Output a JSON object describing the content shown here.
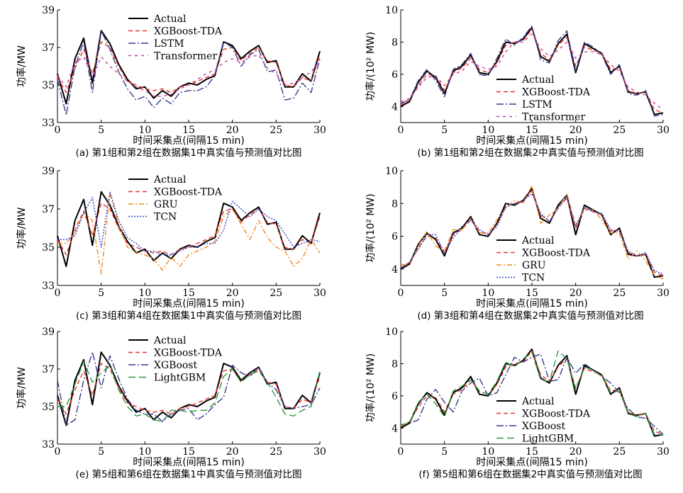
{
  "chart_data": [
    {
      "type": "line",
      "caption": "(a) 第1组和第2组在数据集1中真实值与预测值对比图",
      "xlabel": "时间采集点(间隔15 min)",
      "ylabel": "功率/MW",
      "xlim": [
        0,
        30
      ],
      "ylim": [
        33,
        39
      ],
      "xticks": [
        "0",
        "5",
        "10",
        "15",
        "20",
        "25",
        "30"
      ],
      "yticks": [
        "33",
        "35",
        "37",
        "39"
      ],
      "legend": "top-left",
      "series": [
        {
          "name": "Actual",
          "color": "#000000",
          "values": [
            35.6,
            34.0,
            36.4,
            37.5,
            35.1,
            37.9,
            37.2,
            36.1,
            35.3,
            34.8,
            34.9,
            34.3,
            34.7,
            34.4,
            34.9,
            35.1,
            35.0,
            35.3,
            35.5,
            37.3,
            37.1,
            36.4,
            36.8,
            37.1,
            36.2,
            36.3,
            34.9,
            34.9,
            35.6,
            35.2,
            36.8
          ]
        },
        {
          "name": "XGBoost-TDA",
          "color": "#e8342c",
          "values": [
            35.4,
            34.6,
            35.9,
            36.9,
            35.6,
            37.3,
            37.0,
            36.0,
            35.2,
            35.0,
            34.8,
            34.7,
            34.8,
            34.6,
            34.9,
            35.0,
            35.2,
            35.4,
            35.6,
            36.9,
            37.0,
            36.3,
            36.7,
            37.0,
            36.3,
            36.2,
            35.0,
            34.9,
            35.4,
            35.2,
            36.6
          ]
        },
        {
          "name": "LSTM",
          "color": "#3a3a8c",
          "values": [
            35.3,
            33.4,
            36.0,
            37.3,
            34.6,
            37.9,
            36.9,
            35.7,
            34.8,
            34.2,
            34.4,
            33.8,
            34.3,
            34.0,
            34.6,
            34.7,
            34.7,
            34.9,
            35.5,
            37.3,
            37.0,
            36.0,
            36.6,
            36.9,
            35.7,
            35.8,
            34.2,
            34.3,
            35.1,
            34.6,
            36.4
          ]
        },
        {
          "name": "Transformer",
          "color": "#c040a0",
          "values": [
            35.5,
            34.9,
            36.2,
            36.5,
            35.4,
            36.5,
            36.0,
            35.6,
            35.2,
            34.9,
            34.7,
            34.4,
            34.4,
            34.5,
            34.8,
            35.0,
            35.3,
            35.6,
            35.8,
            36.2,
            36.4,
            36.2,
            36.5,
            36.6,
            35.9,
            35.6,
            35.0,
            35.1,
            35.4,
            35.7,
            36.3
          ]
        }
      ]
    },
    {
      "type": "line",
      "caption": "(b) 第1组和第2组在数据集2中真实值与预测值对比图",
      "xlabel": "时间采集点(间隔15 min)",
      "ylabel": "功率/(10² MW)",
      "xlim": [
        0,
        30
      ],
      "ylim": [
        3,
        10
      ],
      "xticks": [
        "0",
        "5",
        "10",
        "15",
        "20",
        "25",
        "30"
      ],
      "yticks": [
        "4",
        "6",
        "8",
        "10"
      ],
      "legend": "bottom-center",
      "series": [
        {
          "name": "Actual",
          "color": "#000000",
          "values": [
            4.0,
            4.3,
            5.5,
            6.2,
            5.8,
            4.8,
            6.2,
            6.5,
            7.2,
            6.1,
            6.0,
            6.8,
            8.0,
            7.9,
            8.2,
            8.9,
            7.1,
            6.8,
            7.9,
            8.5,
            6.1,
            7.9,
            7.6,
            7.3,
            6.1,
            6.5,
            4.9,
            4.8,
            4.9,
            3.5,
            3.6
          ]
        },
        {
          "name": "XGBoost-TDA",
          "color": "#e8342c",
          "values": [
            4.1,
            4.4,
            5.3,
            6.0,
            5.9,
            5.0,
            6.1,
            6.4,
            7.0,
            6.3,
            6.1,
            6.7,
            7.8,
            8.0,
            8.1,
            8.8,
            7.3,
            6.9,
            7.8,
            8.3,
            6.5,
            7.7,
            7.5,
            7.3,
            6.3,
            6.4,
            5.0,
            4.8,
            4.9,
            3.8,
            3.6
          ]
        },
        {
          "name": "LSTM",
          "color": "#3a3a8c",
          "values": [
            4.2,
            4.4,
            5.6,
            6.3,
            5.6,
            4.6,
            6.3,
            6.6,
            7.3,
            6.0,
            5.9,
            7.0,
            8.2,
            7.8,
            8.3,
            9.0,
            6.9,
            6.7,
            8.1,
            8.7,
            6.2,
            8.0,
            7.7,
            7.2,
            6.0,
            6.6,
            4.8,
            4.7,
            5.0,
            3.4,
            3.5
          ]
        },
        {
          "name": "Transformer",
          "color": "#c040a0",
          "values": [
            4.3,
            4.5,
            5.2,
            5.8,
            5.9,
            5.3,
            6.0,
            6.2,
            6.8,
            6.5,
            6.3,
            6.5,
            7.4,
            8.0,
            8.0,
            8.5,
            7.6,
            7.1,
            7.5,
            8.0,
            7.0,
            7.4,
            7.4,
            7.2,
            6.6,
            6.2,
            5.2,
            4.9,
            4.7,
            4.2,
            3.8
          ]
        }
      ]
    },
    {
      "type": "line",
      "caption": "(c) 第3组和第4组在数据集1中真实值与预测值对比图",
      "xlabel": "时间采集点(间隔15 min)",
      "ylabel": "功率/MW",
      "xlim": [
        0,
        30
      ],
      "ylim": [
        33,
        39
      ],
      "xticks": [
        "0",
        "5",
        "10",
        "15",
        "20",
        "25",
        "30"
      ],
      "yticks": [
        "33",
        "35",
        "37",
        "39"
      ],
      "legend": "top-left",
      "series": [
        {
          "name": "Actual",
          "color": "#000000",
          "values": [
            35.6,
            34.0,
            36.4,
            37.5,
            35.1,
            37.9,
            37.2,
            36.1,
            35.3,
            34.7,
            34.9,
            34.3,
            34.7,
            34.4,
            34.9,
            35.1,
            35.0,
            35.3,
            35.5,
            37.3,
            37.1,
            36.4,
            36.8,
            37.1,
            36.2,
            36.3,
            34.9,
            34.9,
            35.6,
            35.2,
            36.8
          ]
        },
        {
          "name": "XGBoost-TDA",
          "color": "#e8342c",
          "values": [
            35.4,
            34.6,
            35.9,
            36.9,
            35.6,
            37.3,
            37.0,
            36.0,
            35.2,
            35.0,
            34.8,
            34.7,
            34.8,
            34.6,
            34.9,
            35.0,
            35.2,
            35.4,
            35.6,
            36.9,
            37.0,
            36.3,
            36.7,
            37.0,
            36.3,
            36.2,
            35.0,
            34.9,
            35.4,
            35.2,
            36.6
          ]
        },
        {
          "name": "GRU",
          "color": "#f08a24",
          "values": [
            35.2,
            35.2,
            35.8,
            36.8,
            36.4,
            33.6,
            37.8,
            36.2,
            35.0,
            34.7,
            34.6,
            34.4,
            33.8,
            34.5,
            34.0,
            34.6,
            34.8,
            35.0,
            35.3,
            36.6,
            37.0,
            36.2,
            35.4,
            36.4,
            35.5,
            35.0,
            34.8,
            34.0,
            34.4,
            35.4,
            34.7
          ]
        },
        {
          "name": "TCN",
          "color": "#2b44c8",
          "values": [
            35.4,
            35.4,
            35.6,
            36.8,
            37.6,
            35.0,
            37.9,
            36.4,
            35.5,
            35.2,
            34.8,
            34.8,
            34.6,
            34.6,
            34.8,
            35.0,
            35.0,
            35.2,
            35.2,
            35.9,
            37.4,
            37.0,
            36.6,
            37.0,
            36.6,
            36.4,
            35.7,
            35.0,
            35.2,
            35.4,
            35.3
          ]
        }
      ]
    },
    {
      "type": "line",
      "caption": "(d) 第3组和第4组在数据集2中真实值与预测值对比图",
      "xlabel": "时间采集点(间隔15 min)",
      "ylabel": "功率/(10² MW)",
      "xlim": [
        0,
        30
      ],
      "ylim": [
        3,
        10
      ],
      "xticks": [
        "0",
        "5",
        "10",
        "15",
        "20",
        "25",
        "30"
      ],
      "yticks": [
        "4",
        "6",
        "8",
        "10"
      ],
      "legend": "bottom-center",
      "series": [
        {
          "name": "Actual",
          "color": "#000000",
          "values": [
            4.0,
            4.3,
            5.5,
            6.2,
            5.8,
            4.8,
            6.2,
            6.5,
            7.2,
            6.1,
            6.0,
            6.8,
            8.0,
            7.9,
            8.2,
            8.9,
            7.1,
            6.8,
            7.9,
            8.5,
            6.1,
            7.9,
            7.6,
            7.3,
            6.1,
            6.5,
            4.9,
            4.8,
            4.9,
            3.5,
            3.6
          ]
        },
        {
          "name": "XGBoost-TDA",
          "color": "#e8342c",
          "values": [
            4.1,
            4.4,
            5.3,
            6.0,
            5.9,
            5.0,
            6.1,
            6.4,
            7.0,
            6.3,
            6.1,
            6.7,
            7.8,
            8.0,
            8.1,
            8.8,
            7.3,
            6.9,
            7.8,
            8.3,
            6.5,
            7.7,
            7.5,
            7.3,
            6.3,
            6.4,
            5.0,
            4.8,
            4.9,
            3.8,
            3.6
          ]
        },
        {
          "name": "GRU",
          "color": "#f08a24",
          "values": [
            4.3,
            4.2,
            5.4,
            6.3,
            5.4,
            5.1,
            6.4,
            6.4,
            7.1,
            6.2,
            6.2,
            7.0,
            7.7,
            8.2,
            8.0,
            9.1,
            6.8,
            7.3,
            7.7,
            8.6,
            6.7,
            7.6,
            7.6,
            7.0,
            6.2,
            6.2,
            4.6,
            5.1,
            4.5,
            3.6,
            3.4
          ]
        },
        {
          "name": "TCN",
          "color": "#2b44c8",
          "values": [
            4.1,
            4.4,
            5.2,
            6.1,
            6.1,
            5.0,
            5.9,
            6.6,
            7.0,
            6.4,
            6.1,
            6.6,
            7.8,
            8.0,
            8.2,
            8.6,
            7.4,
            6.9,
            7.7,
            8.4,
            6.6,
            7.8,
            7.5,
            7.4,
            6.4,
            6.3,
            5.1,
            4.8,
            5.0,
            3.9,
            3.7
          ]
        }
      ]
    },
    {
      "type": "line",
      "caption": "(e) 第5组和第6组在数据集1中真实值与预测值对比图",
      "xlabel": "时间采集点(间隔15 min)",
      "ylabel": "功率/MW",
      "xlim": [
        0,
        30
      ],
      "ylim": [
        33,
        39
      ],
      "xticks": [
        "0",
        "5",
        "10",
        "15",
        "20",
        "25",
        "30"
      ],
      "yticks": [
        "33",
        "35",
        "37",
        "39"
      ],
      "legend": "top-left",
      "series": [
        {
          "name": "Actual",
          "color": "#000000",
          "values": [
            35.6,
            34.0,
            36.4,
            37.5,
            35.1,
            37.9,
            37.2,
            36.1,
            35.3,
            34.7,
            34.9,
            34.3,
            34.7,
            34.4,
            34.9,
            35.1,
            35.0,
            35.3,
            35.5,
            37.3,
            37.1,
            36.4,
            36.8,
            37.1,
            36.2,
            36.3,
            34.9,
            34.9,
            35.6,
            35.2,
            36.8
          ]
        },
        {
          "name": "XGBoost-TDA",
          "color": "#e8342c",
          "values": [
            35.4,
            34.6,
            35.9,
            36.9,
            35.6,
            37.3,
            37.0,
            36.0,
            35.2,
            35.0,
            34.8,
            34.7,
            34.8,
            34.6,
            34.9,
            35.0,
            35.2,
            35.4,
            35.6,
            36.9,
            37.0,
            36.3,
            36.7,
            37.0,
            36.3,
            36.2,
            35.0,
            34.9,
            35.4,
            35.2,
            36.6
          ]
        },
        {
          "name": "XGBoost",
          "color": "#3a3a8c",
          "values": [
            36.4,
            34.0,
            34.3,
            36.4,
            37.9,
            36.0,
            37.7,
            36.5,
            35.4,
            34.8,
            34.6,
            34.6,
            34.2,
            34.6,
            34.8,
            34.9,
            34.3,
            34.6,
            35.1,
            35.5,
            37.2,
            36.8,
            36.6,
            37.1,
            36.3,
            35.9,
            35.0,
            34.9,
            35.0,
            35.1,
            36.0
          ]
        },
        {
          "name": "LightGBM",
          "color": "#2e9a3e",
          "values": [
            35.0,
            35.0,
            36.2,
            37.4,
            36.3,
            36.8,
            37.2,
            35.9,
            35.0,
            34.5,
            34.6,
            34.3,
            34.2,
            34.8,
            34.8,
            34.7,
            34.8,
            34.8,
            35.2,
            36.6,
            37.0,
            36.3,
            36.7,
            36.9,
            36.3,
            35.5,
            34.6,
            34.5,
            34.8,
            35.0,
            36.9
          ]
        }
      ]
    },
    {
      "type": "line",
      "caption": "(f) 第5组和第6组在数据集2中真实值与预测值对比图",
      "xlabel": "时间采集点(间隔15 min)",
      "ylabel": "功率/(10² MW)",
      "xlim": [
        0,
        30
      ],
      "ylim": [
        3,
        10
      ],
      "xticks": [
        "0",
        "5",
        "10",
        "15",
        "20",
        "25",
        "30"
      ],
      "yticks": [
        "4",
        "6",
        "8",
        "10"
      ],
      "legend": "bottom-center",
      "series": [
        {
          "name": "Actual",
          "color": "#000000",
          "values": [
            4.0,
            4.3,
            5.5,
            6.2,
            5.8,
            4.8,
            6.2,
            6.5,
            7.2,
            6.1,
            6.0,
            6.8,
            8.0,
            7.9,
            8.2,
            8.9,
            7.1,
            6.8,
            7.9,
            8.5,
            6.1,
            7.9,
            7.6,
            7.3,
            6.1,
            6.5,
            4.9,
            4.8,
            4.9,
            3.5,
            3.6
          ]
        },
        {
          "name": "XGBoost-TDA",
          "color": "#e8342c",
          "values": [
            4.1,
            4.4,
            5.3,
            6.0,
            5.9,
            5.0,
            6.1,
            6.4,
            7.0,
            6.3,
            6.1,
            6.7,
            7.8,
            8.0,
            8.1,
            8.8,
            7.3,
            6.9,
            7.8,
            8.3,
            6.5,
            7.7,
            7.5,
            7.3,
            6.3,
            6.4,
            5.0,
            4.8,
            4.9,
            3.8,
            3.6
          ]
        },
        {
          "name": "XGBoost",
          "color": "#3a3a8c",
          "values": [
            4.2,
            4.3,
            4.5,
            5.8,
            6.4,
            5.6,
            5.0,
            6.3,
            6.8,
            7.1,
            6.0,
            6.2,
            7.3,
            8.4,
            8.1,
            8.4,
            8.6,
            6.9,
            7.0,
            8.4,
            7.4,
            8.0,
            7.6,
            7.2,
            6.8,
            6.2,
            5.2,
            4.7,
            4.6,
            4.1,
            3.6
          ]
        },
        {
          "name": "LightGBM",
          "color": "#2e9a3e",
          "values": [
            4.2,
            4.3,
            5.6,
            6.1,
            5.5,
            4.7,
            6.3,
            6.6,
            7.0,
            6.3,
            6.1,
            6.9,
            8.1,
            7.8,
            8.3,
            8.7,
            7.0,
            6.9,
            8.8,
            8.3,
            6.4,
            7.8,
            7.6,
            7.2,
            6.2,
            6.3,
            4.9,
            4.7,
            4.9,
            3.6,
            3.6
          ]
        }
      ]
    }
  ]
}
